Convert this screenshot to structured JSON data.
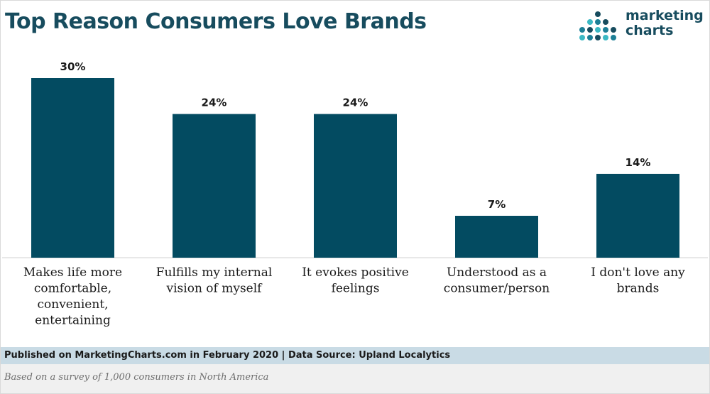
{
  "header": {
    "title": "Top Reason Consumers Love Brands"
  },
  "logo": {
    "line1": "marketing",
    "line2": "charts",
    "dot_colors": [
      "#3bb9c4",
      "#1c7f96",
      "#174c5e"
    ]
  },
  "colors": {
    "bar": "#034b61",
    "title": "#174c5e"
  },
  "chart_data": {
    "type": "bar",
    "title": "Top Reason Consumers Love Brands",
    "xlabel": "",
    "ylabel": "",
    "ylim": [
      0,
      30
    ],
    "grid": false,
    "legend": "none",
    "categories": [
      "Makes life more comfortable, convenient, entertaining",
      "Fulfills my internal vision of myself",
      "It evokes positive feelings",
      "Understood as a consumer/person",
      "I don't love any brands"
    ],
    "category_lines": [
      [
        "Makes life more",
        "comfortable,",
        "convenient,",
        "entertaining"
      ],
      [
        "Fulfills my internal",
        "vision of myself"
      ],
      [
        "It evokes positive",
        "feelings"
      ],
      [
        "Understood as a",
        "consumer/person"
      ],
      [
        "I don't love any",
        "brands"
      ]
    ],
    "values": [
      30,
      24,
      24,
      7,
      14
    ],
    "value_labels": [
      "30%",
      "24%",
      "24%",
      "7%",
      "14%"
    ]
  },
  "footer": {
    "published": "Published on MarketingCharts.com in February 2020 | Data Source: Upland Localytics",
    "note": "Based on a survey of 1,000 consumers in North America"
  }
}
